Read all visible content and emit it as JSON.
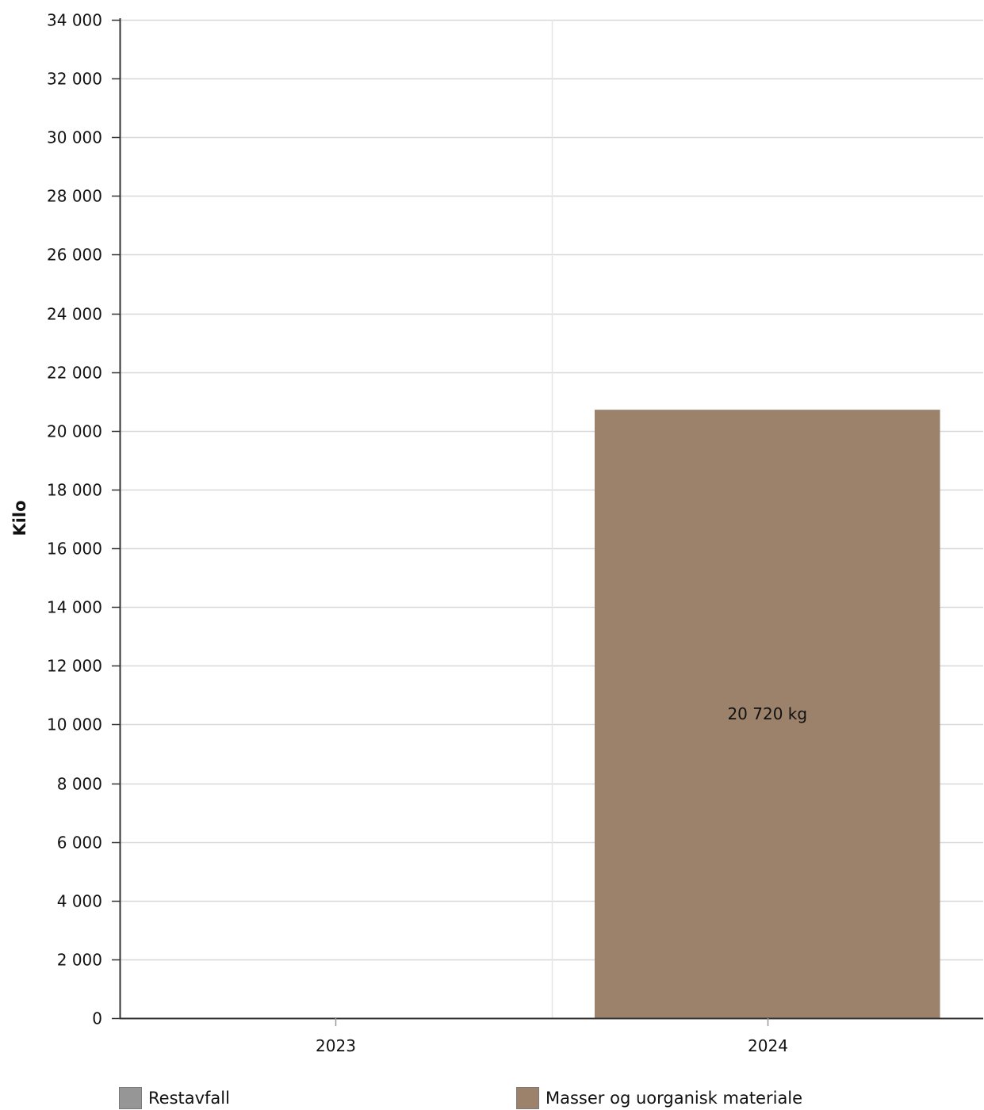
{
  "chart_data": {
    "type": "bar",
    "categories": [
      "2023",
      "2024"
    ],
    "series": [
      {
        "name": "Restavfall",
        "values": [
          0,
          0
        ],
        "color": "#969696"
      },
      {
        "name": "Masser og uorganisk materiale",
        "values": [
          0,
          20720
        ],
        "color": "#9c826b"
      }
    ],
    "data_labels": [
      {
        "category": "2024",
        "series": "Masser og uorganisk materiale",
        "text": "20 720 kg"
      }
    ],
    "ylabel": "Kilo",
    "xlabel": "",
    "title": "",
    "ylim": [
      0,
      34000
    ],
    "y_ticks": [
      0,
      2000,
      4000,
      6000,
      8000,
      10000,
      12000,
      14000,
      16000,
      18000,
      20000,
      22000,
      24000,
      26000,
      28000,
      30000,
      32000,
      34000
    ],
    "y_tick_labels": [
      "0",
      "2 000",
      "4 000",
      "6 000",
      "8 000",
      "10 000",
      "12 000",
      "14 000",
      "16 000",
      "18 000",
      "20 000",
      "22 000",
      "24 000",
      "26 000",
      "28 000",
      "30 000",
      "32 000",
      "34 000"
    ],
    "grid": true,
    "legend_position": "bottom"
  },
  "legend": {
    "items": [
      {
        "label": "Restavfall",
        "color": "#969696"
      },
      {
        "label": "Masser og uorganisk materiale",
        "color": "#9c826b"
      }
    ]
  }
}
